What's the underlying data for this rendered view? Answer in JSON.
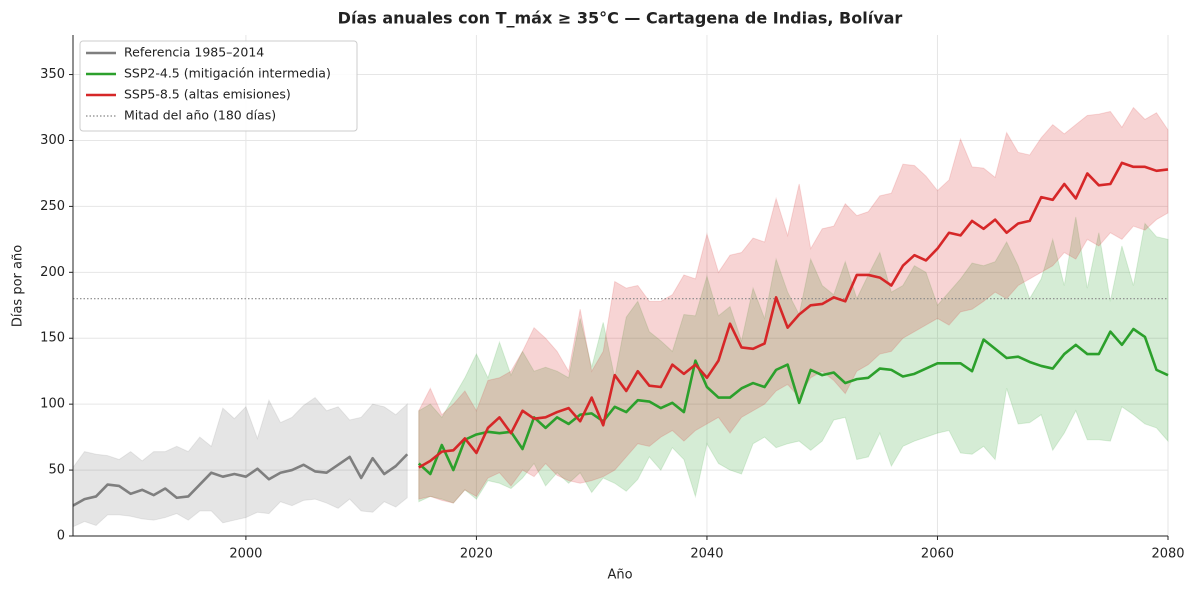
{
  "chart_data": {
    "type": "line",
    "title": "Días anuales con T_máx ≥ 35°C — Cartagena de Indias, Bolívar",
    "x_label": "Año",
    "y_label": "Días por año",
    "xlim": [
      1985,
      2080
    ],
    "ylim": [
      0,
      380
    ],
    "xticks": [
      2000,
      2020,
      2040,
      2060,
      2080
    ],
    "yticks": [
      0,
      50,
      100,
      150,
      200,
      250,
      300,
      350
    ],
    "grid": true,
    "legend": "upper left",
    "series": [
      {
        "name": "Referencia 1985–2014",
        "color": "#7f7f7f",
        "x": [
          1985,
          1986,
          1987,
          1988,
          1989,
          1990,
          1991,
          1992,
          1993,
          1994,
          1995,
          1996,
          1997,
          1998,
          1999,
          2000,
          2001,
          2002,
          2003,
          2004,
          2005,
          2006,
          2007,
          2008,
          2009,
          2010,
          2011,
          2012,
          2013,
          2014
        ],
        "values": [
          23,
          28,
          30,
          39,
          38,
          32,
          35,
          31,
          36,
          29,
          30,
          39,
          48,
          45,
          47,
          45,
          51,
          43,
          48,
          50,
          54,
          49,
          48,
          54,
          60,
          44,
          59,
          47,
          53,
          62
        ],
        "upper": [
          52,
          64,
          62,
          61,
          58,
          64,
          57,
          64,
          64,
          68,
          64,
          75,
          68,
          97,
          89,
          98,
          74,
          103,
          86,
          90,
          99,
          105,
          95,
          98,
          88,
          90,
          100,
          98,
          92,
          100
        ],
        "lower": [
          7,
          11,
          8,
          16,
          16,
          15,
          13,
          12,
          14,
          17,
          12,
          19,
          19,
          10,
          12,
          14,
          18,
          17,
          26,
          23,
          27,
          28,
          25,
          21,
          28,
          19,
          18,
          26,
          22,
          29
        ]
      },
      {
        "name": "SSP2-4.5 (mitigación intermedia)",
        "color": "#2ca02c",
        "x": [
          2015,
          2016,
          2017,
          2018,
          2019,
          2020,
          2021,
          2022,
          2023,
          2024,
          2025,
          2026,
          2027,
          2028,
          2029,
          2030,
          2031,
          2032,
          2033,
          2034,
          2035,
          2036,
          2037,
          2038,
          2039,
          2040,
          2041,
          2042,
          2043,
          2044,
          2045,
          2046,
          2047,
          2048,
          2049,
          2050,
          2051,
          2052,
          2053,
          2054,
          2055,
          2056,
          2057,
          2058,
          2059,
          2060,
          2061,
          2062,
          2063,
          2064,
          2065,
          2066,
          2067,
          2068,
          2069,
          2070,
          2071,
          2072,
          2073,
          2074,
          2075,
          2076,
          2077,
          2078,
          2079,
          2080
        ],
        "values": [
          55,
          47,
          69,
          50,
          73,
          77,
          79,
          78,
          79,
          66,
          90,
          82,
          90,
          85,
          92,
          93,
          87,
          98,
          94,
          103,
          102,
          97,
          101,
          94,
          133,
          113,
          105,
          105,
          112,
          116,
          113,
          126,
          130,
          101,
          126,
          122,
          124,
          116,
          119,
          120,
          127,
          126,
          121,
          123,
          127,
          131,
          131,
          131,
          125,
          149,
          142,
          135,
          136,
          132,
          129,
          127,
          138,
          145,
          138,
          138,
          155,
          145,
          157,
          151,
          126,
          122
        ],
        "upper": [
          95,
          100,
          90,
          105,
          120,
          138,
          120,
          147,
          122,
          140,
          125,
          128,
          125,
          120,
          165,
          128,
          162,
          120,
          166,
          178,
          155,
          148,
          140,
          168,
          167,
          197,
          167,
          174,
          148,
          188,
          165,
          210,
          185,
          168,
          210,
          190,
          183,
          208,
          180,
          198,
          215,
          185,
          190,
          205,
          200,
          175,
          185,
          195,
          207,
          205,
          208,
          223,
          205,
          180,
          195,
          225,
          190,
          242,
          188,
          230,
          178,
          220,
          190,
          237,
          227,
          225
        ],
        "lower": [
          26,
          30,
          28,
          25,
          35,
          28,
          42,
          40,
          36,
          44,
          55,
          38,
          48,
          40,
          48,
          33,
          44,
          40,
          34,
          43,
          60,
          50,
          67,
          58,
          30,
          70,
          55,
          50,
          47,
          70,
          75,
          67,
          70,
          72,
          65,
          72,
          88,
          90,
          58,
          60,
          78,
          53,
          68,
          72,
          75,
          78,
          80,
          63,
          62,
          68,
          58,
          112,
          85,
          86,
          92,
          65,
          78,
          95,
          73,
          73,
          72,
          98,
          92,
          85,
          82,
          72
        ]
      },
      {
        "name": "SSP5-8.5 (altas emisiones)",
        "color": "#d62728",
        "x": [
          2015,
          2016,
          2017,
          2018,
          2019,
          2020,
          2021,
          2022,
          2023,
          2024,
          2025,
          2026,
          2027,
          2028,
          2029,
          2030,
          2031,
          2032,
          2033,
          2034,
          2035,
          2036,
          2037,
          2038,
          2039,
          2040,
          2041,
          2042,
          2043,
          2044,
          2045,
          2046,
          2047,
          2048,
          2049,
          2050,
          2051,
          2052,
          2053,
          2054,
          2055,
          2056,
          2057,
          2058,
          2059,
          2060,
          2061,
          2062,
          2063,
          2064,
          2065,
          2066,
          2067,
          2068,
          2069,
          2070,
          2071,
          2072,
          2073,
          2074,
          2075,
          2076,
          2077,
          2078,
          2079,
          2080
        ],
        "values": [
          52,
          57,
          64,
          65,
          74,
          63,
          82,
          90,
          78,
          95,
          89,
          90,
          94,
          97,
          87,
          105,
          84,
          122,
          110,
          125,
          114,
          113,
          130,
          123,
          130,
          120,
          133,
          161,
          143,
          142,
          146,
          181,
          158,
          168,
          175,
          176,
          181,
          178,
          198,
          198,
          196,
          190,
          205,
          213,
          209,
          218,
          230,
          228,
          239,
          233,
          240,
          230,
          237,
          239,
          257,
          255,
          267,
          256,
          275,
          266,
          267,
          283,
          280,
          280,
          277,
          278
        ],
        "upper": [
          95,
          112,
          92,
          100,
          110,
          95,
          118,
          120,
          125,
          140,
          158,
          150,
          140,
          125,
          172,
          125,
          140,
          193,
          188,
          190,
          178,
          178,
          183,
          198,
          195,
          229,
          200,
          213,
          215,
          226,
          223,
          256,
          228,
          267,
          218,
          233,
          235,
          252,
          243,
          246,
          258,
          260,
          282,
          281,
          273,
          262,
          270,
          301,
          280,
          279,
          272,
          306,
          291,
          289,
          302,
          312,
          305,
          312,
          319,
          320,
          322,
          310,
          325,
          316,
          321,
          308
        ],
        "lower": [
          28,
          30,
          27,
          25,
          35,
          30,
          44,
          48,
          38,
          50,
          45,
          55,
          46,
          42,
          40,
          42,
          45,
          50,
          60,
          70,
          68,
          75,
          80,
          72,
          80,
          85,
          90,
          78,
          90,
          95,
          100,
          110,
          115,
          105,
          120,
          125,
          118,
          108,
          125,
          130,
          138,
          140,
          150,
          155,
          160,
          165,
          160,
          170,
          172,
          178,
          185,
          180,
          190,
          195,
          200,
          205,
          215,
          210,
          225,
          220,
          230,
          225,
          235,
          232,
          240,
          245
        ]
      }
    ],
    "hline": {
      "name": "Mitad del año (180 días)",
      "value": 180,
      "color": "#888888"
    }
  }
}
